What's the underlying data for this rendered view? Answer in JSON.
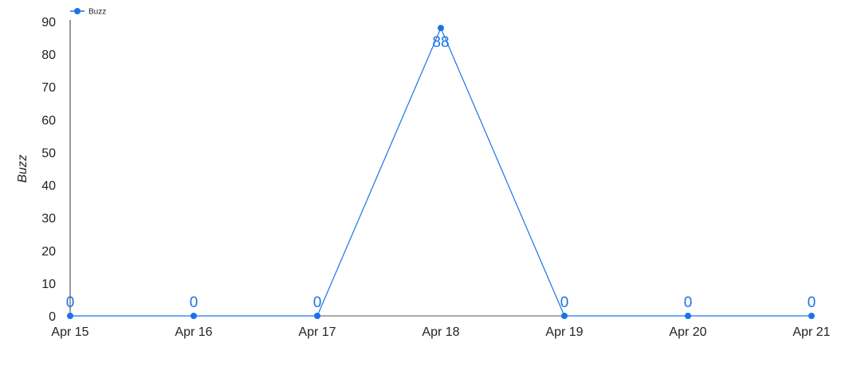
{
  "chart_data": {
    "type": "line",
    "x": [
      "Apr 15",
      "Apr 16",
      "Apr 17",
      "Apr 18",
      "Apr 19",
      "Apr 20",
      "Apr 21"
    ],
    "series": [
      {
        "name": "Buzz",
        "values": [
          0,
          0,
          0,
          88,
          0,
          0,
          0
        ],
        "color": "#1a73e8"
      }
    ],
    "ylabel": "Buzz",
    "ylim": [
      0,
      90
    ],
    "yticks": [
      0,
      10,
      20,
      30,
      40,
      50,
      60,
      70,
      80,
      90
    ],
    "grid": false,
    "legend": "top-left",
    "data_labels": true
  }
}
